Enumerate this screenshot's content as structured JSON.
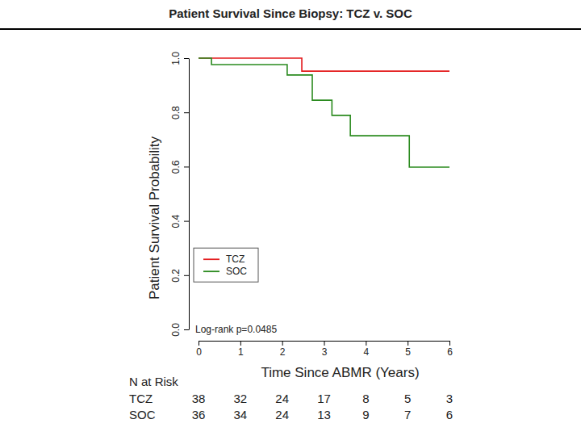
{
  "chart_data": {
    "type": "line",
    "title": "Patient Survival Since Biopsy: TCZ v. SOC",
    "x_label": "Time Since ABMR (Years)",
    "y_label": "Patient Survival Probability",
    "xlim": [
      0,
      6
    ],
    "ylim": [
      0,
      1
    ],
    "xticks": [
      0,
      1,
      2,
      3,
      4,
      5,
      6
    ],
    "yticks": [
      {
        "value": 0,
        "label": "0.0"
      },
      {
        "value": 0.2,
        "label": "0.2"
      },
      {
        "value": 0.4,
        "label": "0.4"
      },
      {
        "value": 0.6,
        "label": "0.6"
      },
      {
        "value": 0.8,
        "label": "0.8"
      },
      {
        "value": 1,
        "label": "1.0"
      }
    ],
    "line_style": "step",
    "legend": "lower left",
    "annotation": "Log-rank p=0.0485",
    "series": [
      {
        "name": "TCZ",
        "color": "#e31a1c",
        "x": [
          0,
          2.47,
          6
        ],
        "values": [
          1,
          0.952,
          0.952
        ]
      },
      {
        "name": "SOC",
        "color": "#2a8a1e",
        "x": [
          0,
          0.31,
          2.12,
          2.72,
          3.19,
          3.63,
          5.04,
          6
        ],
        "values": [
          1,
          0.976,
          0.938,
          0.845,
          0.789,
          0.714,
          0.598,
          0.598
        ]
      }
    ],
    "at_risk": {
      "title": "N at Risk",
      "rows": [
        {
          "name": "TCZ",
          "values": [
            38,
            32,
            24,
            17,
            8,
            5,
            3
          ]
        },
        {
          "name": "SOC",
          "values": [
            36,
            34,
            24,
            13,
            9,
            7,
            6
          ]
        }
      ]
    }
  }
}
